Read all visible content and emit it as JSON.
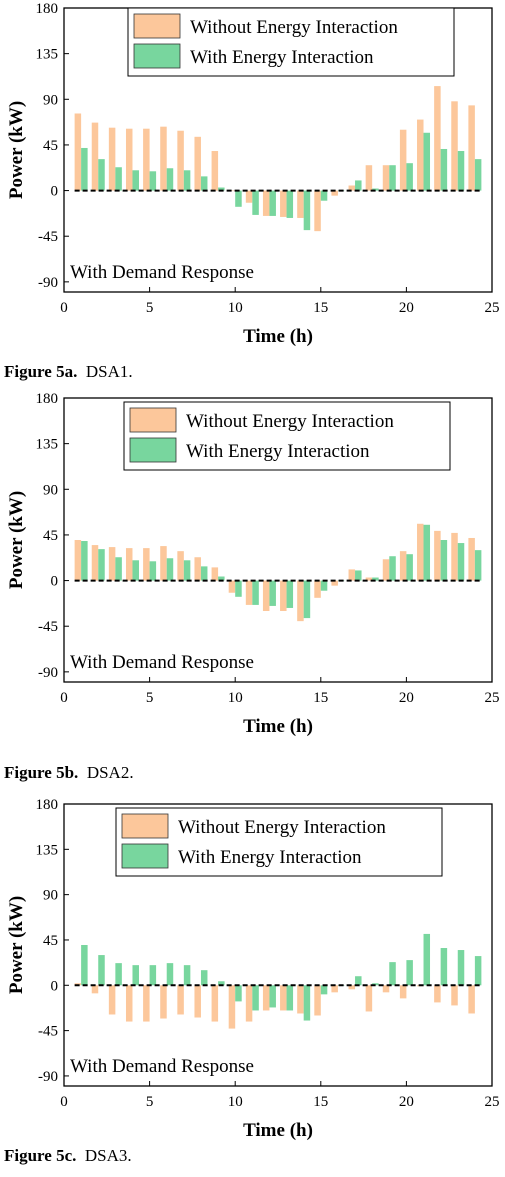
{
  "captions": [
    {
      "label": "Figure 5a.",
      "text": "DSA1."
    },
    {
      "label": "Figure 5b.",
      "text": "DSA2."
    },
    {
      "label": "Figure 5c.",
      "text": "DSA3."
    }
  ],
  "colors": {
    "without": "#fcc79b",
    "with": "#78d69e",
    "outline": "#000000",
    "zero_line": "#000000"
  },
  "chart_data": [
    {
      "type": "bar",
      "xlabel": "Time (h)",
      "ylabel": "Power (kW)",
      "annotation": "With Demand Response",
      "xlim": [
        0,
        25
      ],
      "ylim": [
        -100,
        180
      ],
      "xticks": [
        0,
        5,
        10,
        15,
        20,
        25
      ],
      "yticks": [
        -90,
        -45,
        0,
        45,
        90,
        135,
        180
      ],
      "legend_position": "top",
      "x": [
        1,
        2,
        3,
        4,
        5,
        6,
        7,
        8,
        9,
        10,
        11,
        12,
        13,
        14,
        15,
        16,
        17,
        18,
        19,
        20,
        21,
        22,
        23,
        24
      ],
      "series": [
        {
          "name": "Without Energy Interaction",
          "values": [
            76,
            67,
            62,
            61,
            61,
            63,
            59,
            53,
            39,
            0,
            -12,
            -25,
            -26,
            -27,
            -40,
            -5,
            5,
            25,
            25,
            60,
            70,
            103,
            88,
            84
          ]
        },
        {
          "name": "With Energy Interaction",
          "values": [
            42,
            31,
            23,
            20,
            19,
            22,
            20,
            14,
            3,
            -16,
            -24,
            -25,
            -27,
            -39,
            -10,
            0,
            10,
            2,
            25,
            27,
            57,
            41,
            39,
            31
          ]
        }
      ]
    },
    {
      "type": "bar",
      "xlabel": "Time (h)",
      "ylabel": "Power (kW)",
      "annotation": "With Demand Response",
      "xlim": [
        0,
        25
      ],
      "ylim": [
        -100,
        180
      ],
      "xticks": [
        0,
        5,
        10,
        15,
        20,
        25
      ],
      "yticks": [
        -90,
        -45,
        0,
        45,
        90,
        135,
        180
      ],
      "legend_position": "top",
      "x": [
        1,
        2,
        3,
        4,
        5,
        6,
        7,
        8,
        9,
        10,
        11,
        12,
        13,
        14,
        15,
        16,
        17,
        18,
        19,
        20,
        21,
        22,
        23,
        24
      ],
      "series": [
        {
          "name": "Without Energy Interaction",
          "values": [
            40,
            35,
            33,
            32,
            32,
            34,
            29,
            23,
            13,
            -12,
            -24,
            -30,
            -30,
            -40,
            -17,
            -5,
            11,
            3,
            21,
            29,
            56,
            49,
            47,
            42
          ]
        },
        {
          "name": "With Energy Interaction",
          "values": [
            39,
            31,
            23,
            20,
            19,
            22,
            20,
            14,
            4,
            -16,
            -24,
            -25,
            -27,
            -37,
            -10,
            0,
            10,
            3,
            24,
            26,
            55,
            40,
            37,
            30
          ]
        }
      ]
    },
    {
      "type": "bar",
      "xlabel": "Time (h)",
      "ylabel": "Power (kW)",
      "annotation": "With Demand Response",
      "xlim": [
        0,
        25
      ],
      "ylim": [
        -100,
        180
      ],
      "xticks": [
        0,
        5,
        10,
        15,
        20,
        25
      ],
      "yticks": [
        -90,
        -45,
        0,
        45,
        90,
        135,
        180
      ],
      "legend_position": "top",
      "x": [
        1,
        2,
        3,
        4,
        5,
        6,
        7,
        8,
        9,
        10,
        11,
        12,
        13,
        14,
        15,
        16,
        17,
        18,
        19,
        20,
        21,
        22,
        23,
        24
      ],
      "series": [
        {
          "name": "Without Energy Interaction",
          "values": [
            2,
            -8,
            -29,
            -36,
            -36,
            -33,
            -29,
            -32,
            -36,
            -43,
            -36,
            -25,
            -25,
            -28,
            -30,
            -7,
            -4,
            -26,
            -7,
            -13,
            -1,
            -17,
            -20,
            -28
          ]
        },
        {
          "name": "With Energy Interaction",
          "values": [
            40,
            30,
            22,
            20,
            20,
            22,
            20,
            15,
            4,
            -16,
            -25,
            -22,
            -25,
            -35,
            -9,
            0,
            9,
            2,
            23,
            25,
            51,
            37,
            35,
            29
          ]
        }
      ]
    }
  ]
}
